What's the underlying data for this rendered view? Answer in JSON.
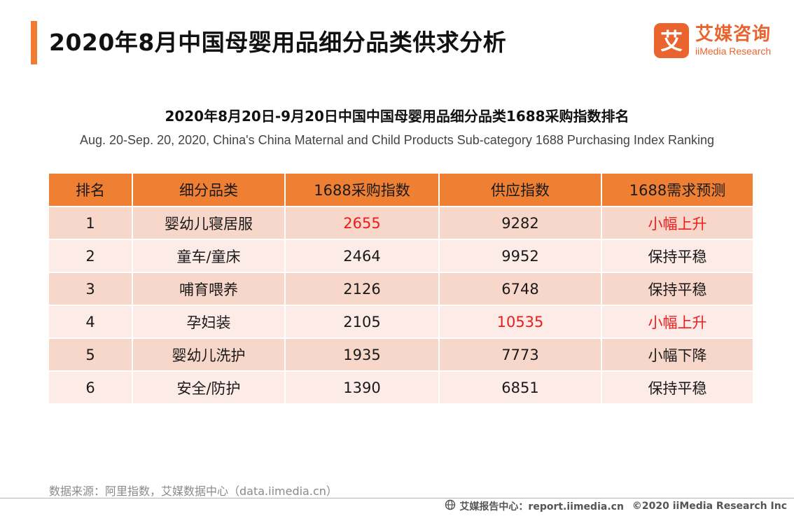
{
  "header": {
    "title": "2020年8月中国母婴用品细分品类供求分析",
    "logo": {
      "cn": "艾媒咨询",
      "en": "iiMedia Research",
      "mark_char": "艾",
      "color": "#e9642f"
    }
  },
  "table": {
    "title": "2020年8月20日-9月20日中国中国母婴用品细分品类1688采购指数排名",
    "subtitle": "Aug. 20-Sep. 20, 2020, China's China Maternal and Child Products Sub-category 1688 Purchasing Index Ranking",
    "columns": [
      "排名",
      "细分品类",
      "1688采购指数",
      "供应指数",
      "1688需求预测"
    ],
    "rows": [
      [
        "1",
        "婴幼儿寝居服",
        "2655",
        "9282",
        "小幅上升"
      ],
      [
        "2",
        "童车/童床",
        "2464",
        "9952",
        "保持平稳"
      ],
      [
        "3",
        "哺育喂养",
        "2126",
        "6748",
        "保持平稳"
      ],
      [
        "4",
        "孕妇装",
        "2105",
        "10535",
        "小幅上升"
      ],
      [
        "5",
        "婴幼儿洗护",
        "1935",
        "7773",
        "小幅下降"
      ],
      [
        "6",
        "安全/防护",
        "1390",
        "6851",
        "保持平稳"
      ]
    ],
    "highlight_color": "#ee1c1c",
    "header_color": "#ef7f33"
  },
  "source": "数据来源：阿里指数，艾媒数据中心（data.iimedia.cn）",
  "footer": {
    "icon": "globe-icon",
    "report": "艾媒报告中心：report.iimedia.cn",
    "copyright": "©2020  iiMedia Research  Inc"
  }
}
